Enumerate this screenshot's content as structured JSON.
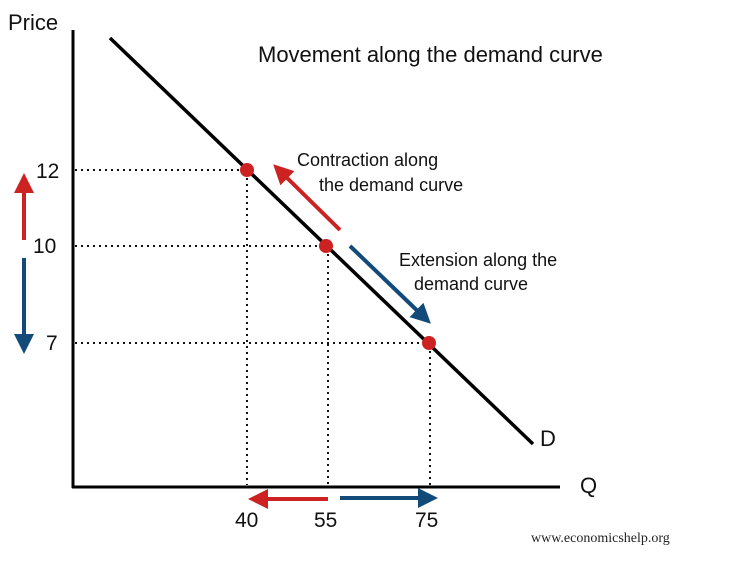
{
  "title": "Movement along the demand curve",
  "axes": {
    "y_label": "Price",
    "x_label": "Q"
  },
  "curve_label": "D",
  "price_ticks": [
    "12",
    "10",
    "7"
  ],
  "quantity_ticks": [
    "40",
    "55",
    "75"
  ],
  "points": [
    {
      "price": 12,
      "quantity": 40
    },
    {
      "price": 10,
      "quantity": 55
    },
    {
      "price": 7,
      "quantity": 75
    }
  ],
  "annotations": {
    "contraction_line1": "Contraction along",
    "contraction_line2": "the demand curve",
    "extension_line1": "Extension along the",
    "extension_line2": "demand curve"
  },
  "colors": {
    "contraction": "#cc2222",
    "extension": "#124a7a",
    "point": "#cc2222",
    "axis": "#000000"
  },
  "credit": "www.economicshelp.org"
}
